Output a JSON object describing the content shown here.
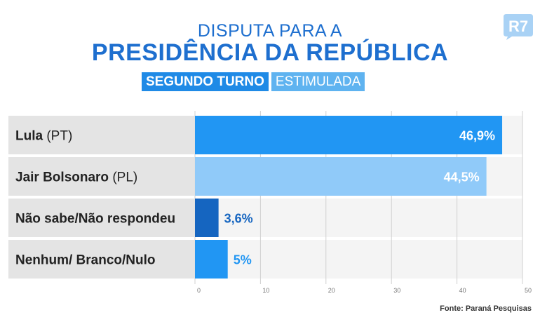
{
  "header": {
    "line1": "DISPUTA PARA A",
    "line2": "PRESIDÊNCIA DA REPÚBLICA",
    "tag_primary": "SEGUNDO TURNO",
    "tag_secondary": "ESTIMULADA",
    "logo": "R7"
  },
  "source": "Fonte: Paraná Pesquisas",
  "colors": {
    "title": "#1e6fcf",
    "label_bg": "#e4e4e4",
    "track_bg": "#f4f4f4",
    "grid": "#d0d0d0"
  },
  "chart_data": {
    "type": "bar",
    "orientation": "horizontal",
    "categories": [
      {
        "name": "Lula",
        "party": "(PT)"
      },
      {
        "name": "Jair Bolsonaro",
        "party": "(PL)"
      },
      {
        "name": "Não sabe/Não respondeu",
        "party": ""
      },
      {
        "name": "Nenhum/ Branco/Nulo",
        "party": ""
      }
    ],
    "values": [
      46.9,
      44.5,
      3.6,
      5
    ],
    "value_labels": [
      "46,9%",
      "44,5%",
      "3,6%",
      "5%"
    ],
    "bar_colors": [
      "#2196f3",
      "#90caf9",
      "#1565c0",
      "#2196f3"
    ],
    "value_label_colors": [
      "#ffffff",
      "#ffffff",
      "#1565c0",
      "#2196f3"
    ],
    "value_label_inside": [
      true,
      true,
      false,
      false
    ],
    "xlim": [
      0,
      50
    ],
    "xticks": [
      0,
      10,
      20,
      30,
      40,
      50
    ],
    "grid": true
  }
}
